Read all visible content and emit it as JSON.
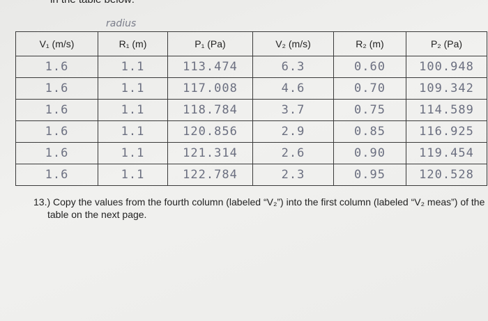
{
  "header": {
    "cut_text": "in the table below:",
    "note": "radius"
  },
  "table": {
    "columns": [
      "V₁ (m/s)",
      "R₁ (m)",
      "P₁ (Pa)",
      "V₂ (m/s)",
      "R₂ (m)",
      "P₂ (Pa)"
    ],
    "rows": [
      [
        "1.6",
        "1.1",
        "113.474",
        "6.3",
        "0.60",
        "100.948"
      ],
      [
        "1.6",
        "1.1",
        "117.008",
        "4.6",
        "0.70",
        "109.342"
      ],
      [
        "1.6",
        "1.1",
        "118.784",
        "3.7",
        "0.75",
        "114.589"
      ],
      [
        "1.6",
        "1.1",
        "120.856",
        "2.9",
        "0.85",
        "116.925"
      ],
      [
        "1.6",
        "1.1",
        "121.314",
        "2.6",
        "0.90",
        "119.454"
      ],
      [
        "1.6",
        "1.1",
        "122.784",
        "2.3",
        "0.95",
        "120.528"
      ]
    ]
  },
  "instruction": "13.) Copy the values from the fourth column (labeled “V₂”) into the first column (labeled “V₂ meas”) of the table on the next page."
}
